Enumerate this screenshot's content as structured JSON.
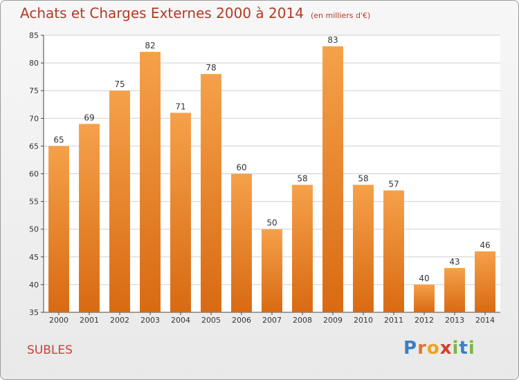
{
  "header": {
    "title": "Achats et Charges Externes 2000 à 2014",
    "unit": "(en milliers d'€)"
  },
  "footer": {
    "commune": "SUBLES",
    "logo_letters": [
      "P",
      "r",
      "o",
      "x",
      "i",
      "t",
      "i"
    ],
    "logo_colors": [
      "#3b7fc4",
      "#e8732b",
      "#f0a21c",
      "#d93b2b",
      "#7ab843",
      "#3b7fc4",
      "#7ab843"
    ]
  },
  "colors": {
    "bar_top": "#f5a14a",
    "bar_bottom": "#d86a12",
    "title": "#b13a26",
    "grid": "#cfcfcf",
    "axis": "#444444"
  },
  "chart_data": {
    "type": "bar",
    "categories": [
      "2000",
      "2001",
      "2002",
      "2003",
      "2004",
      "2005",
      "2006",
      "2007",
      "2008",
      "2009",
      "2010",
      "2011",
      "2012",
      "2013",
      "2014"
    ],
    "values": [
      65,
      69,
      75,
      82,
      71,
      78,
      60,
      50,
      58,
      83,
      58,
      57,
      40,
      43,
      46
    ],
    "ylim": [
      35,
      85
    ],
    "yticks": [
      35,
      40,
      45,
      50,
      55,
      60,
      65,
      70,
      75,
      80,
      85
    ],
    "grid": true,
    "data_labels": true
  }
}
